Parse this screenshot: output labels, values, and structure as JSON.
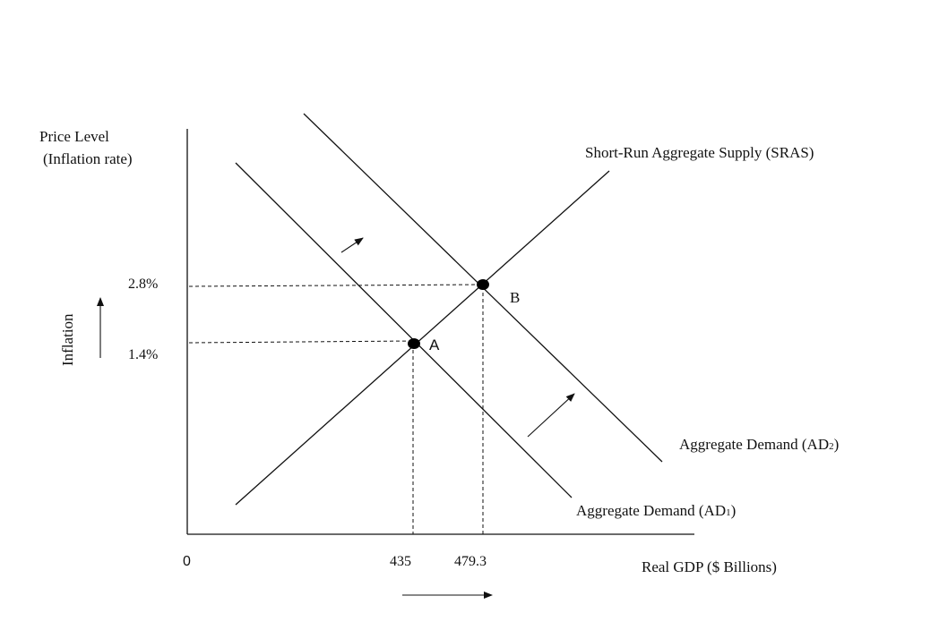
{
  "chart_data": {
    "type": "line",
    "y_axis_label_line1": "Price Level",
    "y_axis_label_line2": "(Inflation rate)",
    "x_axis_label": "Real GDP ($ Billions)",
    "side_label": "Inflation",
    "origin_label": "0",
    "y_ticks": [
      "2.8%",
      "1.4%"
    ],
    "x_ticks": [
      "435",
      "479.3"
    ],
    "curves": {
      "sras": {
        "label": "Short-Run Aggregate Supply (SRAS)"
      },
      "ad1": {
        "label": "Aggregate Demand (AD",
        "sub": "1",
        "close": ")"
      },
      "ad2": {
        "label": "Aggregate Demand (AD",
        "sub": "2",
        "close": ")"
      }
    },
    "points": [
      {
        "label": "A",
        "x": 435,
        "y": 1.4
      },
      {
        "label": "B",
        "x": 479.3,
        "y": 2.8
      }
    ]
  }
}
